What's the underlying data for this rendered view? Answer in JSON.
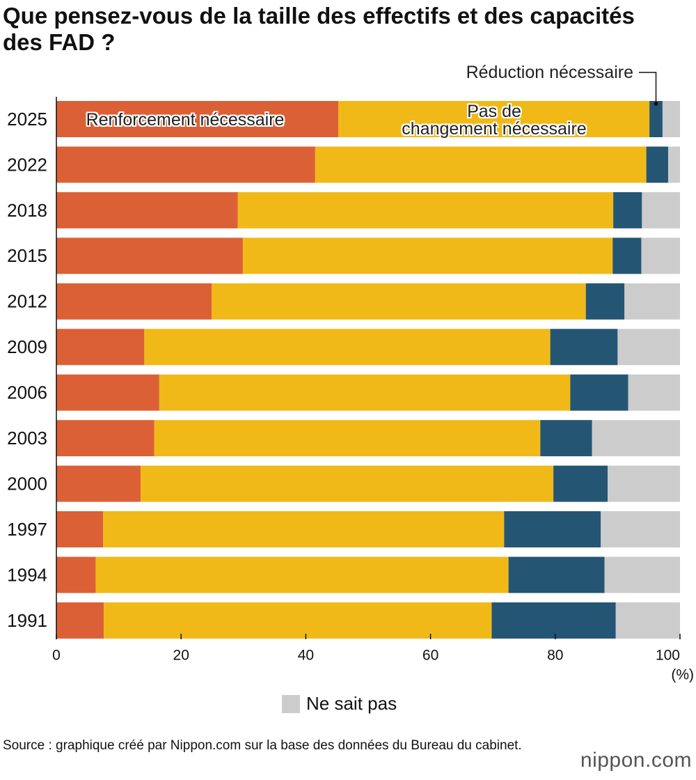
{
  "title": "Que pensez-vous de la taille des effectifs et des capacités des FAD ?",
  "chart_data": {
    "type": "stacked-bar-horizontal",
    "categories": [
      "2025",
      "2022",
      "2018",
      "2015",
      "2012",
      "2009",
      "2006",
      "2003",
      "2000",
      "1997",
      "1994",
      "1991"
    ],
    "series": [
      {
        "name": "Renforcement nécessaire",
        "color": "#dc6035",
        "values": [
          45.2,
          41.5,
          29.1,
          29.9,
          24.9,
          14.1,
          16.5,
          15.7,
          13.5,
          7.5,
          6.3,
          7.6
        ]
      },
      {
        "name": "Pas de\nchangement nécessaire",
        "color": "#f0b918",
        "values": [
          49.9,
          53.1,
          60.2,
          59.3,
          60.0,
          65.1,
          65.9,
          61.9,
          66.2,
          64.3,
          66.2,
          62.2
        ]
      },
      {
        "name": "Réduction nécessaire",
        "color": "#245674",
        "values": [
          2.1,
          3.5,
          4.6,
          4.6,
          6.2,
          10.8,
          9.3,
          8.3,
          8.7,
          15.5,
          15.4,
          19.9
        ]
      },
      {
        "name": "Ne sait pas",
        "color": "#cccccc",
        "values": [
          2.8,
          1.9,
          6.1,
          6.2,
          8.9,
          10.0,
          8.3,
          14.1,
          11.6,
          12.7,
          12.1,
          10.3
        ]
      }
    ],
    "xlim": [
      0,
      100
    ],
    "xticks": [
      0,
      20,
      40,
      60,
      80,
      100
    ],
    "xlabel": "(%)",
    "legend": "bottom"
  },
  "source": "Source : graphique créé par Nippon.com sur la base des données du Bureau du cabinet.",
  "logo": "nippon.com"
}
